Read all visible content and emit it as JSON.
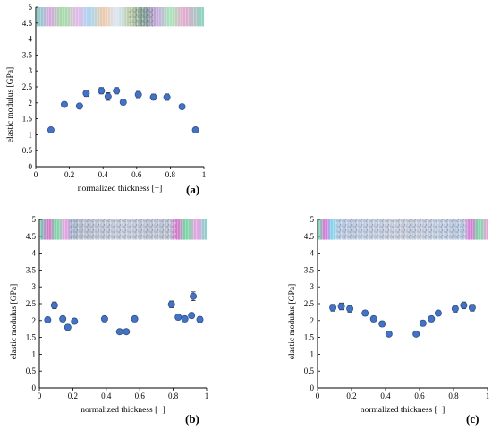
{
  "chart_data": [
    {
      "type": "scatter",
      "panel_label": "(a)",
      "xlabel": "normalized thickness [−]",
      "ylabel": "elastic modulus [GPa]",
      "xlim": [
        0,
        1
      ],
      "ylim": [
        0,
        5
      ],
      "xticks": [
        "0",
        "0.2",
        "0.4",
        "0.6",
        "0.8",
        "1"
      ],
      "yticks": [
        "0",
        "0.5",
        "1",
        "1.5",
        "2",
        "2.5",
        "3",
        "3.5",
        "4",
        "4.5",
        "5"
      ],
      "inset_image": "photoelastic-strip",
      "points": [
        {
          "x": 0.09,
          "y": 1.15,
          "err": 0.0
        },
        {
          "x": 0.17,
          "y": 1.95,
          "err": 0.06
        },
        {
          "x": 0.26,
          "y": 1.9,
          "err": 0.07
        },
        {
          "x": 0.3,
          "y": 2.3,
          "err": 0.1
        },
        {
          "x": 0.39,
          "y": 2.38,
          "err": 0.1
        },
        {
          "x": 0.43,
          "y": 2.2,
          "err": 0.12
        },
        {
          "x": 0.48,
          "y": 2.38,
          "err": 0.1
        },
        {
          "x": 0.52,
          "y": 2.02,
          "err": 0.08
        },
        {
          "x": 0.61,
          "y": 2.26,
          "err": 0.1
        },
        {
          "x": 0.7,
          "y": 2.18,
          "err": 0.09
        },
        {
          "x": 0.78,
          "y": 2.18,
          "err": 0.1
        },
        {
          "x": 0.87,
          "y": 1.88,
          "err": 0.07
        },
        {
          "x": 0.95,
          "y": 1.15,
          "err": 0.0
        }
      ]
    },
    {
      "type": "scatter",
      "panel_label": "(b)",
      "xlabel": "normalized thickness [−]",
      "ylabel": "elastic modulus [GPa]",
      "xlim": [
        0,
        1
      ],
      "ylim": [
        0,
        5
      ],
      "xticks": [
        "0",
        "0.2",
        "0.4",
        "0.6",
        "0.8",
        "1"
      ],
      "yticks": [
        "0",
        "0.5",
        "1",
        "1.5",
        "2",
        "2.5",
        "3",
        "3.5",
        "4",
        "4.5",
        "5"
      ],
      "inset_image": "photoelastic-strip-textured-center",
      "points": [
        {
          "x": 0.05,
          "y": 2.02,
          "err": 0.08
        },
        {
          "x": 0.09,
          "y": 2.45,
          "err": 0.1
        },
        {
          "x": 0.14,
          "y": 2.05,
          "err": 0.08
        },
        {
          "x": 0.17,
          "y": 1.8,
          "err": 0.08
        },
        {
          "x": 0.21,
          "y": 1.98,
          "err": 0.08
        },
        {
          "x": 0.39,
          "y": 2.05,
          "err": 0.08
        },
        {
          "x": 0.48,
          "y": 1.67,
          "err": 0.05
        },
        {
          "x": 0.52,
          "y": 1.67,
          "err": 0.05
        },
        {
          "x": 0.57,
          "y": 2.05,
          "err": 0.08
        },
        {
          "x": 0.79,
          "y": 2.48,
          "err": 0.1
        },
        {
          "x": 0.83,
          "y": 2.1,
          "err": 0.08
        },
        {
          "x": 0.87,
          "y": 2.05,
          "err": 0.08
        },
        {
          "x": 0.91,
          "y": 2.15,
          "err": 0.08
        },
        {
          "x": 0.92,
          "y": 2.72,
          "err": 0.13
        },
        {
          "x": 0.96,
          "y": 2.03,
          "err": 0.08
        }
      ]
    },
    {
      "type": "scatter",
      "panel_label": "(c)",
      "xlabel": "normalized thickness [−]",
      "ylabel": "elastic modulus [GPa]",
      "xlim": [
        0,
        1
      ],
      "ylim": [
        0,
        5
      ],
      "xticks": [
        "0",
        "0.2",
        "0.4",
        "0.6",
        "0.8",
        "1"
      ],
      "yticks": [
        "0",
        "0.5",
        "1",
        "1.5",
        "2",
        "2.5",
        "3",
        "3.5",
        "4",
        "4.5",
        "5"
      ],
      "inset_image": "photoelastic-strip-textured-wide",
      "points": [
        {
          "x": 0.09,
          "y": 2.38,
          "err": 0.1
        },
        {
          "x": 0.14,
          "y": 2.42,
          "err": 0.1
        },
        {
          "x": 0.19,
          "y": 2.35,
          "err": 0.1
        },
        {
          "x": 0.28,
          "y": 2.22,
          "err": 0.08
        },
        {
          "x": 0.33,
          "y": 2.05,
          "err": 0.08
        },
        {
          "x": 0.38,
          "y": 1.9,
          "err": 0.08
        },
        {
          "x": 0.42,
          "y": 1.6,
          "err": 0.05
        },
        {
          "x": 0.58,
          "y": 1.6,
          "err": 0.05
        },
        {
          "x": 0.62,
          "y": 1.92,
          "err": 0.08
        },
        {
          "x": 0.67,
          "y": 2.05,
          "err": 0.08
        },
        {
          "x": 0.71,
          "y": 2.22,
          "err": 0.08
        },
        {
          "x": 0.81,
          "y": 2.35,
          "err": 0.1
        },
        {
          "x": 0.86,
          "y": 2.45,
          "err": 0.1
        },
        {
          "x": 0.91,
          "y": 2.38,
          "err": 0.1
        }
      ]
    }
  ],
  "colors": {
    "marker_fill": "#4472c4",
    "marker_edge": "#2f528f",
    "axis": "#000000"
  }
}
